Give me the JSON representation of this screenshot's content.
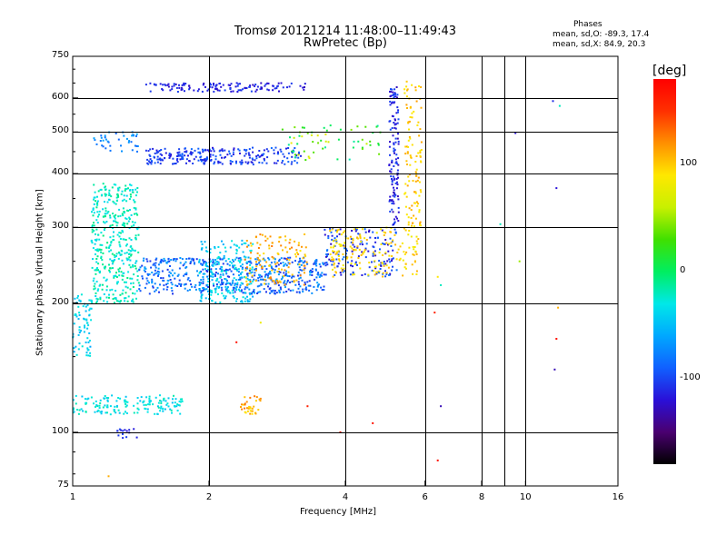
{
  "header": {
    "title": "Tromsø 20121214 11:48:00–11:49:43",
    "subtitle": "RwPretec (Bp)"
  },
  "stats": {
    "heading": "Phases",
    "line_o": "mean, sd,O: -89.3, 17.4",
    "line_x": "mean, sd,X:  84.9, 20.3"
  },
  "colorbar": {
    "unit": "[deg]",
    "ticks": [
      {
        "value": 100,
        "label": "100"
      },
      {
        "value": 0,
        "label": "0"
      },
      {
        "value": -100,
        "label": "-100"
      }
    ],
    "range": [
      -180,
      180
    ],
    "colors": [
      "#000000",
      "#4a0070",
      "#2a10d8",
      "#1060ff",
      "#00a8ff",
      "#00e8e8",
      "#00ee60",
      "#40e000",
      "#c8f000",
      "#ffe800",
      "#ff9000",
      "#ff3000",
      "#ff0000"
    ]
  },
  "chart_data": {
    "type": "scatter",
    "xlabel": "Frequency [MHz]",
    "ylabel": "Stationary phase Virtual Height [km]",
    "x_scale": "log",
    "y_scale": "log",
    "xlim": [
      1,
      16
    ],
    "ylim": [
      75,
      750
    ],
    "grid": true,
    "x_ticks": [
      {
        "value": 1,
        "label": "1"
      },
      {
        "value": 2,
        "label": "2"
      },
      {
        "value": 4,
        "label": "4"
      },
      {
        "value": 6,
        "label": "6"
      },
      {
        "value": 8,
        "label": "8"
      },
      {
        "value": 10,
        "label": "10"
      },
      {
        "value": 16,
        "label": "16"
      }
    ],
    "x_gridlines": [
      2,
      4,
      6,
      8,
      9,
      10
    ],
    "y_ticks": [
      {
        "value": 75,
        "label": "75"
      },
      {
        "value": 100,
        "label": "100"
      },
      {
        "value": 200,
        "label": "200"
      },
      {
        "value": 300,
        "label": "300"
      },
      {
        "value": 400,
        "label": "400"
      },
      {
        "value": 500,
        "label": "500"
      },
      {
        "value": 600,
        "label": "600"
      },
      {
        "value": 750,
        "label": "750"
      }
    ],
    "y_gridlines": [
      100,
      200,
      300,
      400,
      500,
      600
    ],
    "clusters": [
      {
        "name": "o-trace E layer",
        "f": [
          1.0,
          1.75
        ],
        "h": [
          110,
          122
        ],
        "phase": [
          -50,
          -15
        ],
        "n": 160
      },
      {
        "name": "low vertical",
        "f": [
          1.0,
          1.1
        ],
        "h": [
          150,
          210
        ],
        "phase": [
          -60,
          -25
        ],
        "n": 70
      },
      {
        "name": "F low",
        "f": [
          1.1,
          1.4
        ],
        "h": [
          200,
          380
        ],
        "phase": [
          -40,
          -5
        ],
        "n": 420
      },
      {
        "name": "F base o",
        "f": [
          1.4,
          3.6
        ],
        "h": [
          210,
          255
        ],
        "phase": [
          -110,
          -60
        ],
        "n": 560
      },
      {
        "name": "F cluster 2-3 MHz",
        "f": [
          1.9,
          2.5
        ],
        "h": [
          200,
          280
        ],
        "phase": [
          -60,
          -25
        ],
        "n": 200
      },
      {
        "name": "x-trace base",
        "f": [
          2.4,
          3.3
        ],
        "h": [
          220,
          290
        ],
        "phase": [
          90,
          130
        ],
        "n": 120
      },
      {
        "name": "rising o curve",
        "f": [
          3.6,
          5.2
        ],
        "h": [
          230,
          300
        ],
        "phase": [
          -130,
          -80
        ],
        "n": 160
      },
      {
        "name": "rising x curve",
        "f": [
          3.7,
          5.8
        ],
        "h": [
          230,
          300
        ],
        "phase": [
          80,
          110
        ],
        "n": 170
      },
      {
        "name": "o cusp vertical",
        "f": [
          5.0,
          5.25
        ],
        "h": [
          300,
          640
        ],
        "phase": [
          -130,
          -95
        ],
        "n": 130
      },
      {
        "name": "x cusp vertical",
        "f": [
          5.4,
          5.9
        ],
        "h": [
          300,
          660
        ],
        "phase": [
          85,
          115
        ],
        "n": 110
      },
      {
        "name": "2F o",
        "f": [
          1.45,
          3.2
        ],
        "h": [
          420,
          460
        ],
        "phase": [
          -120,
          -85
        ],
        "n": 250
      },
      {
        "name": "2F mixed",
        "f": [
          2.9,
          4.8
        ],
        "h": [
          430,
          520
        ],
        "phase": [
          -20,
          80
        ],
        "n": 60
      },
      {
        "name": "top echo",
        "f": [
          1.45,
          3.3
        ],
        "h": [
          620,
          650
        ],
        "phase": [
          -130,
          -100
        ],
        "n": 130
      },
      {
        "name": "upper low f",
        "f": [
          1.1,
          1.4
        ],
        "h": [
          450,
          500
        ],
        "phase": [
          -90,
          -60
        ],
        "n": 40
      },
      {
        "name": "Es patch",
        "f": [
          2.35,
          2.6
        ],
        "h": [
          110,
          122
        ],
        "phase": [
          90,
          130
        ],
        "n": 35
      },
      {
        "name": "low patch",
        "f": [
          1.25,
          1.4
        ],
        "h": [
          97,
          102
        ],
        "phase": [
          -120,
          -100
        ],
        "n": 15
      }
    ],
    "outliers": [
      {
        "f": 6.3,
        "h": 190,
        "phase": 160
      },
      {
        "f": 6.5,
        "h": 115,
        "phase": -130
      },
      {
        "f": 6.4,
        "h": 86,
        "phase": 170
      },
      {
        "f": 8.8,
        "h": 305,
        "phase": -20
      },
      {
        "f": 9.5,
        "h": 497,
        "phase": -120
      },
      {
        "f": 11.5,
        "h": 590,
        "phase": -110
      },
      {
        "f": 11.7,
        "h": 370,
        "phase": -120
      },
      {
        "f": 11.9,
        "h": 575,
        "phase": -20
      },
      {
        "f": 11.8,
        "h": 195,
        "phase": 110
      },
      {
        "f": 11.7,
        "h": 165,
        "phase": 170
      },
      {
        "f": 11.6,
        "h": 140,
        "phase": -130
      },
      {
        "f": 3.3,
        "h": 115,
        "phase": 160
      },
      {
        "f": 2.3,
        "h": 162,
        "phase": 170
      },
      {
        "f": 2.6,
        "h": 180,
        "phase": 80
      },
      {
        "f": 4.6,
        "h": 105,
        "phase": 170
      },
      {
        "f": 1.2,
        "h": 79,
        "phase": 110
      },
      {
        "f": 6.5,
        "h": 220,
        "phase": -20
      },
      {
        "f": 6.4,
        "h": 230,
        "phase": 90
      },
      {
        "f": 9.7,
        "h": 250,
        "phase": 50
      },
      {
        "f": 3.9,
        "h": 100,
        "phase": 170
      }
    ]
  }
}
